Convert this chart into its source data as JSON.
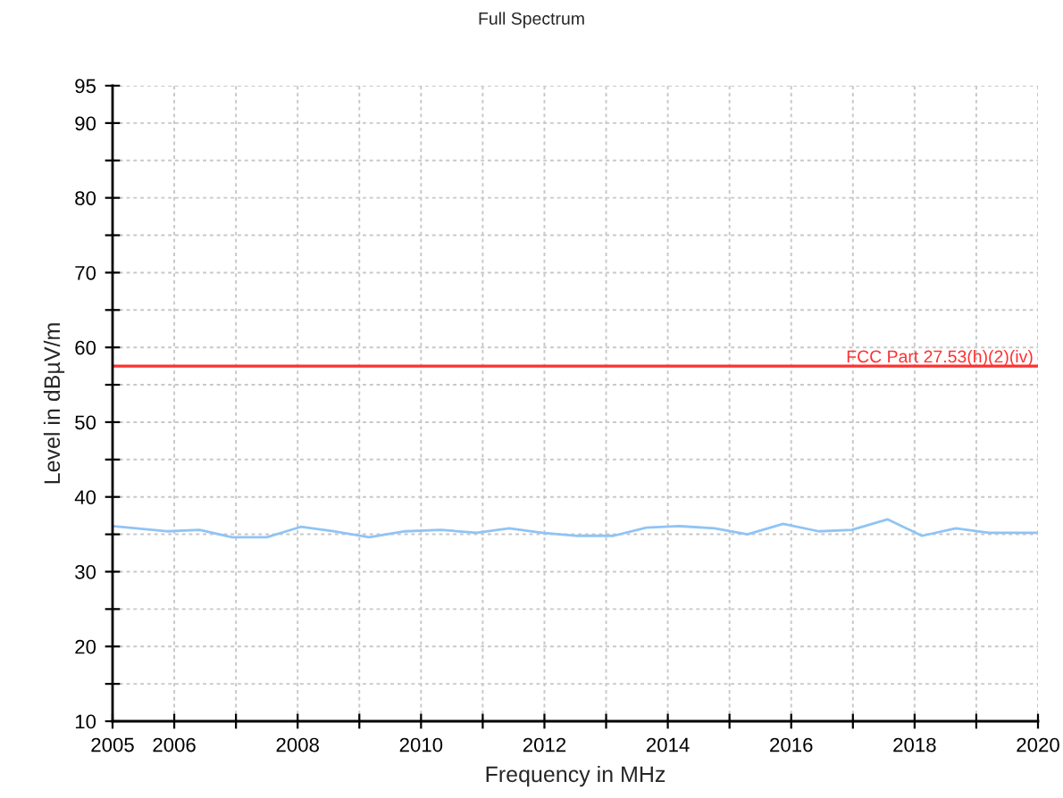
{
  "chart_data": {
    "type": "line",
    "title": "Full Spectrum",
    "xlabel": "Frequency in MHz",
    "ylabel": "Level in dBµV/m",
    "series": [
      {
        "color": "#90c4f4",
        "x": [
          2005,
          2005.88,
          2006.41,
          2006.94,
          2007.5,
          2008.05,
          2008.58,
          2009.16,
          2009.74,
          2010.32,
          2010.9,
          2011.43,
          2011.96,
          2012.54,
          2013.12,
          2013.65,
          2014.18,
          2014.76,
          2015.29,
          2015.87,
          2016.45,
          2016.98,
          2017.56,
          2018.12,
          2018.67,
          2019.2,
          2019.78,
          2020
        ],
        "values": [
          36.1,
          35.4,
          35.6,
          34.6,
          34.6,
          36.0,
          35.4,
          34.6,
          35.4,
          35.6,
          35.2,
          35.8,
          35.2,
          34.8,
          34.8,
          35.9,
          36.1,
          35.8,
          35.0,
          36.4,
          35.4,
          35.6,
          37.0,
          34.8,
          35.8,
          35.2,
          35.2,
          35.2
        ]
      }
    ],
    "ref_lines": [
      {
        "axis": "y",
        "value": 57.5,
        "label": "FCC Part 27.53(h)(2)(iv)",
        "color": "#ff3030",
        "line_style": "solid"
      }
    ],
    "xlim": [
      2005,
      2020
    ],
    "ylim": [
      10,
      95
    ],
    "xticks": [
      2005,
      2006,
      {
        "value": 2007,
        "label": null
      },
      2008,
      {
        "value": 2009,
        "label": null
      },
      2010,
      {
        "value": 2011,
        "label": null
      },
      2012,
      {
        "value": 2013,
        "label": null
      },
      2014,
      {
        "value": 2015,
        "label": null
      },
      2016,
      {
        "value": 2017,
        "label": null
      },
      2018,
      {
        "value": 2019,
        "label": null
      },
      2020
    ],
    "yticks": [
      10,
      {
        "value": 15,
        "label": null
      },
      20,
      {
        "value": 25,
        "label": null
      },
      30,
      {
        "value": 35,
        "label": null
      },
      40,
      {
        "value": 45,
        "label": null
      },
      50,
      {
        "value": 55,
        "label": null
      },
      60,
      {
        "value": 65,
        "label": null
      },
      70,
      {
        "value": 75,
        "label": null
      },
      80,
      {
        "value": 85,
        "label": null
      },
      90,
      95
    ],
    "grid": true,
    "legend": false,
    "marker": "none",
    "line_style": "solid"
  }
}
